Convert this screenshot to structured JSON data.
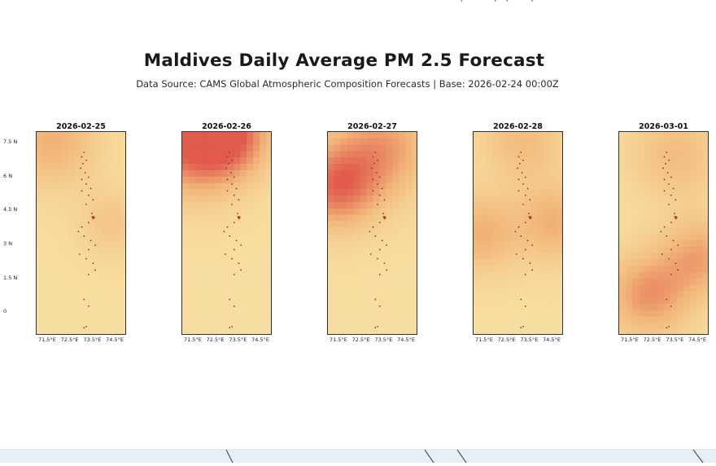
{
  "colors": {
    "low": "#f8e4a6",
    "mid": "#f2b77a",
    "high": "#e15b4d",
    "background": "#ffffff",
    "frame": "#333333",
    "island": "#7a3f2a",
    "marker": "#c62828"
  },
  "chart_data": {
    "type": "heatmap",
    "title": "Maldives Daily Average PM 2.5 Forecast",
    "subtitle": "Data Source: CAMS Global Atmospheric Composition Forecasts | Base: 2026-02-24 00:00Z",
    "xlabel": "",
    "ylabel": "",
    "x_ticks": [
      "71.5°E",
      "72.5°E",
      "73.5°E",
      "74.5°E"
    ],
    "y_ticks": [
      "7.5 N",
      "6 N",
      "4.5 N",
      "3 N",
      "1.5 N",
      "0"
    ],
    "x_tick_values": [
      71.5,
      72.5,
      73.5,
      74.5
    ],
    "y_tick_values": [
      7.5,
      6,
      4.5,
      3,
      1.5,
      0
    ],
    "lon_range": [
      71,
      75
    ],
    "lat_range": [
      -1,
      8
    ],
    "intensity_scale": [
      0,
      1
    ],
    "panels": [
      {
        "date": "2026-02-25",
        "hotspots": [
          {
            "lon": 71.7,
            "lat": 7.6,
            "strength": 0.45,
            "spread": 1.4
          },
          {
            "lon": 74.3,
            "lat": 4.0,
            "strength": 0.25,
            "spread": 1.0
          }
        ]
      },
      {
        "date": "2026-02-26",
        "hotspots": [
          {
            "lon": 71.6,
            "lat": 7.6,
            "strength": 0.95,
            "spread": 1.6
          },
          {
            "lon": 73.2,
            "lat": 7.9,
            "strength": 0.6,
            "spread": 1.2
          }
        ]
      },
      {
        "date": "2026-02-27",
        "hotspots": [
          {
            "lon": 71.4,
            "lat": 5.6,
            "strength": 0.8,
            "spread": 1.3
          },
          {
            "lon": 73.5,
            "lat": 7.3,
            "strength": 0.55,
            "spread": 1.5
          }
        ]
      },
      {
        "date": "2026-02-28",
        "hotspots": [
          {
            "lon": 71.3,
            "lat": 3.5,
            "strength": 0.45,
            "spread": 1.2
          },
          {
            "lon": 74.6,
            "lat": 4.0,
            "strength": 0.45,
            "spread": 1.2
          },
          {
            "lon": 73.2,
            "lat": 7.6,
            "strength": 0.35,
            "spread": 1.3
          }
        ]
      },
      {
        "date": "2026-03-01",
        "hotspots": [
          {
            "lon": 72.3,
            "lat": 0.8,
            "strength": 0.6,
            "spread": 1.3
          },
          {
            "lon": 74.6,
            "lat": 2.5,
            "strength": 0.5,
            "spread": 1.2
          },
          {
            "lon": 73.5,
            "lat": 7.0,
            "strength": 0.35,
            "spread": 1.4
          }
        ]
      }
    ]
  }
}
